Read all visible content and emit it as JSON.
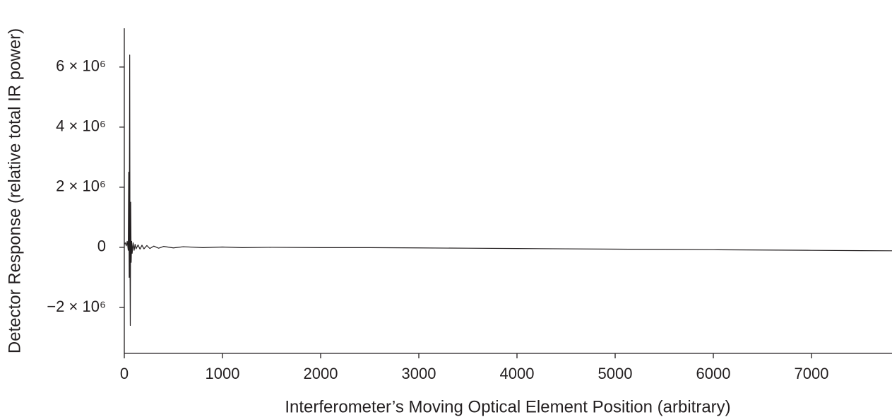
{
  "chart_data": {
    "type": "line",
    "x_label": "Interferometer’s Moving Optical Element Position (arbitrary)",
    "y_label": "Detector Response (relative total IR power)",
    "x": [
      0,
      10,
      20,
      30,
      40,
      45,
      50,
      55,
      58,
      61,
      65,
      70,
      75,
      80,
      90,
      100,
      110,
      120,
      140,
      160,
      180,
      200,
      230,
      260,
      300,
      350,
      400,
      500,
      600,
      800,
      1000,
      1200,
      1500,
      2000,
      2500,
      3000,
      3500,
      4000,
      4500,
      5000,
      5500,
      6000,
      6500,
      7000,
      7500,
      7820
    ],
    "values": [
      100000,
      150000,
      50000,
      200000,
      -100000,
      2500000,
      -1000000,
      6400000,
      -500000,
      -2600000,
      1500000,
      -500000,
      200000,
      -200000,
      150000,
      -100000,
      100000,
      -50000,
      80000,
      -60000,
      70000,
      -50000,
      60000,
      -40000,
      40000,
      -30000,
      30000,
      -20000,
      20000,
      -10000,
      10000,
      -10000,
      0,
      -10000,
      -10000,
      -20000,
      -30000,
      -40000,
      -50000,
      -60000,
      -70000,
      -80000,
      -90000,
      -100000,
      -110000,
      -115000
    ],
    "color": "#231f20",
    "xlim": [
      0,
      7820
    ],
    "ylim": [
      -3530000,
      7290000
    ],
    "xticks": [
      0,
      1000,
      2000,
      3000,
      4000,
      5000,
      6000,
      7000
    ],
    "yticks": [
      {
        "value": -2000000,
        "label": "−2 × 10⁶"
      },
      0,
      {
        "value": 2000000,
        "label": "2 × 10⁶"
      },
      {
        "value": 4000000,
        "label": "4 × 10⁶"
      },
      {
        "value": 6000000,
        "label": "6 × 10⁶"
      }
    ],
    "grid": false
  }
}
